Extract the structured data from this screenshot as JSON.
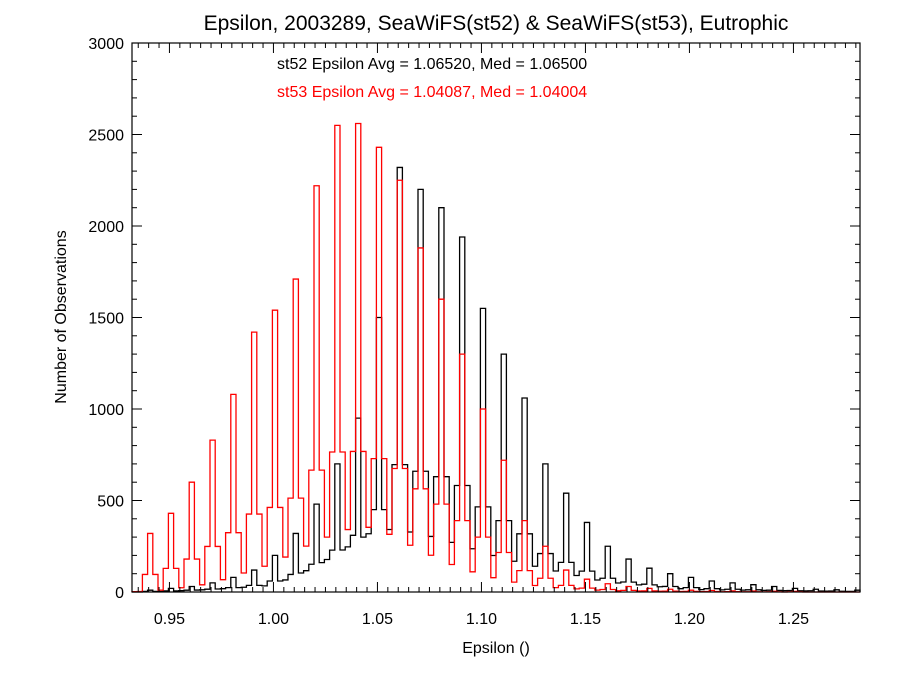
{
  "chart_data": {
    "type": "histogram-step",
    "title": "Epsilon, 2003289, SeaWiFS(st52) & SeaWiFS(st53), Eutrophic",
    "xlabel": "Epsilon ()",
    "ylabel": "Number of Observations",
    "xlim": [
      0.932,
      1.282
    ],
    "ylim": [
      0,
      3000
    ],
    "x_ticks": [
      0.95,
      1.0,
      1.05,
      1.1,
      1.15,
      1.2,
      1.25
    ],
    "x_tick_labels": [
      "0.95",
      "1.00",
      "1.05",
      "1.10",
      "1.15",
      "1.20",
      "1.25"
    ],
    "y_ticks": [
      0,
      500,
      1000,
      1500,
      2000,
      2500,
      3000
    ],
    "y_tick_labels": [
      "0",
      "500",
      "1000",
      "1500",
      "2000",
      "2500",
      "3000"
    ],
    "colors": {
      "st52": "#000000",
      "st53": "#ff0000"
    },
    "annotations": [
      {
        "text": "st52 Epsilon Avg = 1.06520, Med = 1.06500",
        "color": "#000000"
      },
      {
        "text": "st53 Epsilon Avg = 1.04087, Med = 1.04004",
        "color": "#ff0000"
      }
    ],
    "series": [
      {
        "id": "st52",
        "color": "#000000",
        "spikes": [
          [
            0.94,
            10
          ],
          [
            0.95,
            20
          ],
          [
            0.96,
            30
          ],
          [
            0.97,
            50
          ],
          [
            0.98,
            80
          ],
          [
            0.99,
            120
          ],
          [
            1.0,
            200
          ],
          [
            1.01,
            320
          ],
          [
            1.02,
            480
          ],
          [
            1.03,
            700
          ],
          [
            1.04,
            950
          ],
          [
            1.05,
            1500
          ],
          [
            1.06,
            2320
          ],
          [
            1.07,
            2200
          ],
          [
            1.08,
            2100
          ],
          [
            1.09,
            1940
          ],
          [
            1.1,
            1550
          ],
          [
            1.11,
            1300
          ],
          [
            1.12,
            1060
          ],
          [
            1.13,
            700
          ],
          [
            1.14,
            540
          ],
          [
            1.15,
            380
          ],
          [
            1.16,
            250
          ],
          [
            1.17,
            180
          ],
          [
            1.18,
            130
          ],
          [
            1.19,
            100
          ],
          [
            1.2,
            80
          ],
          [
            1.21,
            60
          ],
          [
            1.22,
            50
          ],
          [
            1.23,
            40
          ],
          [
            1.24,
            30
          ],
          [
            1.25,
            20
          ],
          [
            1.26,
            15
          ],
          [
            1.27,
            12
          ],
          [
            1.28,
            10
          ]
        ],
        "base_x": [
          0.935,
          0.95,
          0.97,
          1.0,
          1.02,
          1.04,
          1.05,
          1.07,
          1.09,
          1.11,
          1.13,
          1.16,
          1.2,
          1.28
        ],
        "base_y": [
          0,
          5,
          15,
          40,
          150,
          300,
          380,
          350,
          280,
          200,
          140,
          60,
          15,
          3
        ]
      },
      {
        "id": "st53",
        "color": "#ff0000",
        "spikes": [
          [
            0.94,
            320
          ],
          [
            0.95,
            430
          ],
          [
            0.96,
            600
          ],
          [
            0.97,
            830
          ],
          [
            0.98,
            1080
          ],
          [
            0.99,
            1420
          ],
          [
            1.0,
            1540
          ],
          [
            1.01,
            1710
          ],
          [
            1.02,
            2220
          ],
          [
            1.03,
            2550
          ],
          [
            1.04,
            2560
          ],
          [
            1.05,
            2430
          ],
          [
            1.06,
            2250
          ],
          [
            1.07,
            1880
          ],
          [
            1.08,
            1600
          ],
          [
            1.09,
            1300
          ],
          [
            1.1,
            1000
          ],
          [
            1.11,
            720
          ],
          [
            1.12,
            390
          ],
          [
            1.13,
            250
          ],
          [
            1.14,
            120
          ],
          [
            1.15,
            70
          ],
          [
            1.16,
            45
          ],
          [
            1.17,
            30
          ],
          [
            1.18,
            20
          ],
          [
            1.19,
            15
          ],
          [
            1.2,
            10
          ],
          [
            1.21,
            8
          ],
          [
            1.22,
            6
          ],
          [
            1.23,
            5
          ],
          [
            1.24,
            4
          ],
          [
            1.25,
            3
          ]
        ],
        "base_x": [
          0.935,
          0.95,
          0.97,
          1.0,
          1.02,
          1.04,
          1.05,
          1.07,
          1.09,
          1.11,
          1.13,
          1.16,
          1.2,
          1.25
        ],
        "base_y": [
          2,
          15,
          50,
          170,
          300,
          390,
          380,
          250,
          140,
          70,
          30,
          8,
          2,
          0
        ]
      }
    ]
  }
}
